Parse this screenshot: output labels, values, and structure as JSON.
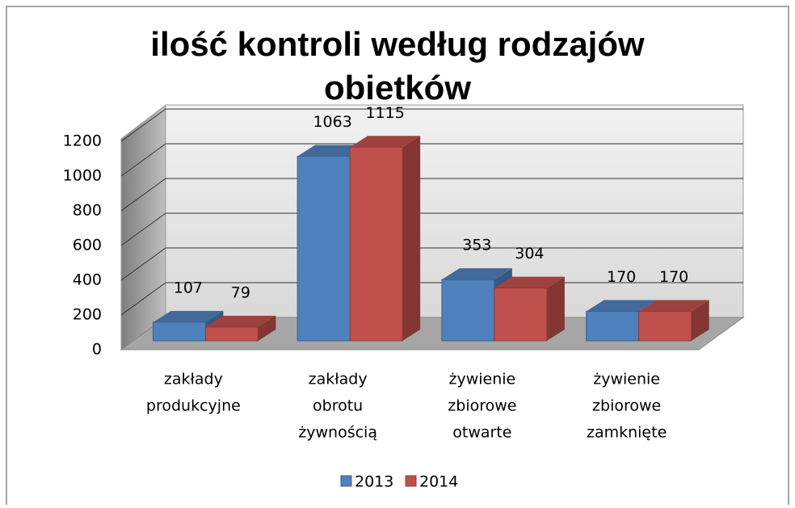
{
  "chart_data": {
    "type": "bar3d",
    "title": "ilość kontroli według rodzajów obietków",
    "categories": [
      [
        "zakłady",
        "produkcyjne"
      ],
      [
        "zakłady",
        "obrotu",
        "żywnością"
      ],
      [
        "żywienie",
        "zbiorowe",
        "otwarte"
      ],
      [
        "żywienie",
        "zbiorowe",
        "zamknięte"
      ]
    ],
    "series": [
      {
        "name": "2013",
        "color": "#4f81bd",
        "values": [
          107,
          1063,
          353,
          170
        ]
      },
      {
        "name": "2014",
        "color": "#c0504d",
        "values": [
          79,
          1115,
          304,
          170
        ]
      }
    ],
    "ylim": [
      0,
      1200
    ],
    "yticks": [
      0,
      200,
      400,
      600,
      800,
      1000,
      1200
    ],
    "grid": true,
    "legend": "bottom"
  }
}
